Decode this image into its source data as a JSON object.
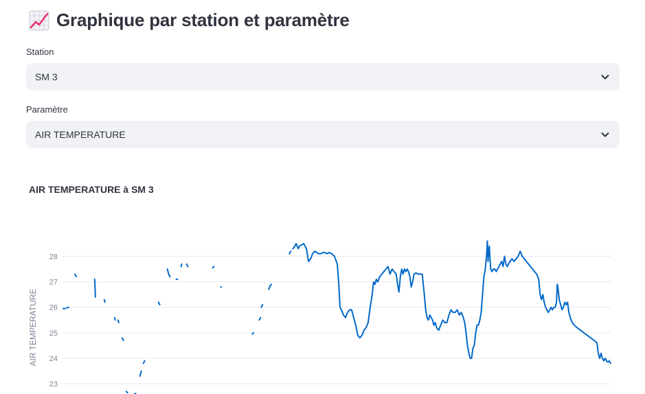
{
  "header": {
    "title": "Graphique par station et paramètre",
    "icon": "chart-increasing-icon"
  },
  "station": {
    "label": "Station",
    "value": "SM 3"
  },
  "parameter": {
    "label": "Paramètre",
    "value": "AIR TEMPERATURE"
  },
  "chart_data": {
    "type": "line",
    "title": "AIR TEMPERATURE à SM 3",
    "xlabel": "",
    "ylabel": "AIR TEMPERATURE",
    "ylim": [
      22.6,
      28.9
    ],
    "yticks": [
      23,
      24,
      25,
      26,
      27,
      28
    ],
    "grid": true,
    "color": "#0068c9",
    "x_range": [
      0,
      800
    ],
    "series": [
      {
        "segments": [
          [
            [
              0,
              25.95
            ],
            [
              3,
              25.95
            ]
          ],
          [
            [
              5,
              25.98
            ],
            [
              8,
              26.0
            ]
          ],
          [
            [
              17,
              27.3
            ],
            [
              19,
              27.2
            ]
          ],
          [
            [
              46,
              27.1
            ],
            [
              47,
              26.4
            ]
          ],
          [
            [
              60,
              26.3
            ],
            [
              61,
              26.2
            ]
          ],
          [
            [
              75,
              25.6
            ],
            [
              76,
              25.5
            ]
          ],
          [
            [
              80,
              25.5
            ],
            [
              81,
              25.4
            ]
          ],
          [
            [
              86,
              24.8
            ],
            [
              88,
              24.7
            ]
          ],
          [
            [
              92,
              22.7
            ],
            [
              94,
              22.65
            ]
          ],
          [
            [
              104,
              22.6
            ],
            [
              106,
              22.62
            ]
          ],
          [
            [
              112,
              23.3
            ],
            [
              114,
              23.5
            ]
          ],
          [
            [
              117,
              23.8
            ],
            [
              119,
              23.9
            ]
          ],
          [
            [
              139,
              26.2
            ],
            [
              141,
              26.1
            ]
          ],
          [
            [
              152,
              27.5
            ],
            [
              154,
              27.3
            ],
            [
              156,
              27.2
            ]
          ],
          [
            [
              165,
              27.1
            ],
            [
              167,
              27.1
            ]
          ],
          [
            [
              172,
              27.6
            ],
            [
              173,
              27.7
            ]
          ],
          [
            [
              180,
              27.7
            ],
            [
              182,
              27.6
            ]
          ],
          [
            [
              218,
              27.55
            ],
            [
              220,
              27.6
            ]
          ],
          [
            [
              230,
              26.8
            ],
            [
              231,
              26.8
            ]
          ],
          [
            [
              276,
              24.95
            ],
            [
              278,
              25.0
            ]
          ],
          [
            [
              286,
              25.5
            ],
            [
              288,
              25.6
            ]
          ],
          [
            [
              289,
              26.0
            ],
            [
              291,
              26.1
            ]
          ],
          [
            [
              300,
              26.7
            ],
            [
              302,
              26.85
            ],
            [
              304,
              26.9
            ]
          ],
          [
            [
              330,
              28.1
            ],
            [
              332,
              28.2
            ]
          ],
          [
            [
              335,
              28.3
            ],
            [
              337,
              28.35
            ],
            [
              340,
              28.5
            ],
            [
              343,
              28.3
            ],
            [
              345,
              28.4
            ],
            [
              348,
              28.45
            ],
            [
              351,
              28.5
            ],
            [
              355,
              28.3
            ],
            [
              358,
              27.8
            ],
            [
              361,
              27.9
            ],
            [
              364,
              28.1
            ],
            [
              367,
              28.2
            ],
            [
              370,
              28.15
            ],
            [
              373,
              28.1
            ],
            [
              376,
              28.1
            ],
            [
              379,
              28.15
            ],
            [
              382,
              28.15
            ],
            [
              385,
              28.1
            ],
            [
              388,
              28.15
            ],
            [
              392,
              28.1
            ],
            [
              396,
              28.0
            ],
            [
              400,
              27.7
            ],
            [
              402,
              27.0
            ],
            [
              404,
              26.0
            ],
            [
              406,
              25.9
            ],
            [
              409,
              25.7
            ],
            [
              412,
              25.6
            ],
            [
              415,
              25.8
            ],
            [
              418,
              25.9
            ],
            [
              421,
              25.9
            ],
            [
              424,
              25.6
            ],
            [
              427,
              25.3
            ],
            [
              430,
              24.9
            ],
            [
              433,
              24.8
            ],
            [
              436,
              24.9
            ],
            [
              439,
              25.1
            ],
            [
              442,
              25.2
            ],
            [
              445,
              25.4
            ],
            [
              448,
              26.0
            ],
            [
              451,
              26.5
            ],
            [
              453,
              27.0
            ],
            [
              455,
              26.9
            ],
            [
              457,
              27.1
            ],
            [
              459,
              27.0
            ],
            [
              462,
              27.2
            ],
            [
              465,
              27.3
            ],
            [
              468,
              27.4
            ],
            [
              471,
              27.5
            ],
            [
              474,
              27.6
            ],
            [
              477,
              27.3
            ],
            [
              480,
              27.5
            ],
            [
              483,
              27.4
            ],
            [
              486,
              27.3
            ],
            [
              488,
              26.9
            ],
            [
              490,
              26.6
            ],
            [
              492,
              27.2
            ],
            [
              494,
              27.5
            ],
            [
              496,
              27.3
            ],
            [
              498,
              27.5
            ],
            [
              500,
              27.4
            ],
            [
              502,
              27.5
            ],
            [
              504,
              27.4
            ],
            [
              506,
              27.2
            ],
            [
              508,
              26.8
            ],
            [
              510,
              27.0
            ],
            [
              512,
              27.3
            ],
            [
              515,
              27.35
            ],
            [
              518,
              27.3
            ],
            [
              521,
              27.3
            ],
            [
              524,
              27.3
            ],
            [
              527,
              26.5
            ],
            [
              529,
              25.9
            ],
            [
              531,
              25.6
            ],
            [
              533,
              25.5
            ],
            [
              535,
              25.7
            ],
            [
              537,
              25.6
            ],
            [
              539,
              25.5
            ],
            [
              541,
              25.3
            ],
            [
              543,
              25.4
            ],
            [
              545,
              25.2
            ],
            [
              548,
              25.1
            ],
            [
              551,
              25.3
            ],
            [
              554,
              25.5
            ],
            [
              557,
              25.4
            ],
            [
              560,
              25.4
            ],
            [
              563,
              25.7
            ],
            [
              566,
              25.9
            ],
            [
              569,
              25.8
            ],
            [
              572,
              25.8
            ],
            [
              575,
              25.9
            ],
            [
              578,
              25.7
            ],
            [
              581,
              25.8
            ],
            [
              584,
              25.6
            ],
            [
              586,
              25.4
            ],
            [
              588,
              25.0
            ],
            [
              590,
              24.5
            ],
            [
              592,
              24.2
            ],
            [
              594,
              24.0
            ],
            [
              596,
              24.0
            ],
            [
              598,
              24.4
            ],
            [
              600,
              24.5
            ],
            [
              602,
              25.0
            ],
            [
              604,
              25.3
            ],
            [
              606,
              25.3
            ],
            [
              608,
              25.5
            ],
            [
              610,
              25.8
            ],
            [
              612,
              26.5
            ],
            [
              614,
              27.2
            ],
            [
              616,
              27.5
            ],
            [
              618,
              28.1
            ],
            [
              619,
              28.6
            ],
            [
              620,
              27.8
            ],
            [
              621,
              28.2
            ],
            [
              622,
              28.4
            ],
            [
              623,
              27.9
            ],
            [
              624,
              27.5
            ],
            [
              626,
              27.4
            ],
            [
              628,
              27.5
            ],
            [
              630,
              27.5
            ],
            [
              632,
              27.4
            ],
            [
              634,
              27.5
            ],
            [
              636,
              27.6
            ],
            [
              638,
              27.7
            ],
            [
              640,
              27.8
            ],
            [
              642,
              27.6
            ],
            [
              644,
              28.0
            ],
            [
              646,
              27.7
            ],
            [
              648,
              27.6
            ],
            [
              650,
              27.7
            ],
            [
              652,
              27.8
            ],
            [
              655,
              27.9
            ],
            [
              658,
              27.8
            ],
            [
              661,
              27.9
            ],
            [
              664,
              28.0
            ],
            [
              667,
              28.2
            ],
            [
              670,
              28.0
            ],
            [
              673,
              27.9
            ],
            [
              676,
              27.8
            ],
            [
              679,
              27.7
            ],
            [
              682,
              27.6
            ],
            [
              685,
              27.5
            ],
            [
              688,
              27.4
            ],
            [
              691,
              27.3
            ],
            [
              694,
              27.1
            ],
            [
              696,
              26.5
            ],
            [
              698,
              26.3
            ],
            [
              700,
              26.5
            ],
            [
              702,
              26.2
            ],
            [
              704,
              26.0
            ],
            [
              706,
              25.9
            ],
            [
              708,
              25.8
            ],
            [
              710,
              25.9
            ],
            [
              712,
              26.0
            ],
            [
              714,
              25.9
            ],
            [
              716,
              26.0
            ],
            [
              718,
              26.0
            ],
            [
              720,
              26.2
            ],
            [
              721,
              26.9
            ],
            [
              722,
              26.8
            ],
            [
              724,
              26.3
            ],
            [
              726,
              26.1
            ],
            [
              728,
              25.9
            ],
            [
              730,
              26.0
            ],
            [
              732,
              26.2
            ],
            [
              734,
              26.1
            ],
            [
              736,
              26.2
            ],
            [
              738,
              25.8
            ],
            [
              740,
              25.6
            ],
            [
              743,
              25.4
            ],
            [
              746,
              25.3
            ],
            [
              750,
              25.2
            ],
            [
              755,
              25.1
            ],
            [
              760,
              25.0
            ],
            [
              765,
              24.9
            ],
            [
              770,
              24.8
            ],
            [
              775,
              24.7
            ],
            [
              779,
              24.6
            ],
            [
              781,
              24.2
            ],
            [
              783,
              24.0
            ],
            [
              785,
              24.2
            ],
            [
              787,
              24.0
            ],
            [
              789,
              23.9
            ],
            [
              791,
              24.0
            ],
            [
              793,
              23.9
            ],
            [
              795,
              23.85
            ],
            [
              797,
              23.9
            ],
            [
              799,
              23.8
            ]
          ]
        ]
      }
    ]
  }
}
